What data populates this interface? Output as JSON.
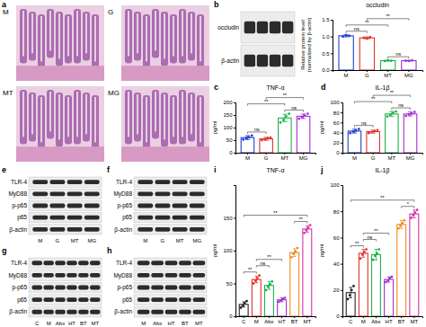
{
  "chart_data": [
    {
      "type": "bar",
      "title": "occludin",
      "y_label": [
        "Relative protein level",
        "(normalized by β-actin)"
      ],
      "categories": [
        "M",
        "G",
        "MT",
        "MG"
      ],
      "values": [
        1.02,
        0.96,
        0.28,
        0.28
      ],
      "errors": [
        0.03,
        0.03,
        0.01,
        0.01
      ],
      "points": [
        [
          1.0,
          1.04,
          1.02
        ],
        [
          0.96,
          0.94,
          0.98
        ],
        [
          0.27,
          0.29,
          0.28
        ],
        [
          0.28,
          0.27,
          0.29
        ]
      ],
      "colors": [
        "#1f3fd1",
        "#e0302a",
        "#19b34a",
        "#a22fd0"
      ],
      "ylim": [
        0,
        1.5
      ],
      "yticks": [
        {
          "value": 0,
          "label": "0.0"
        },
        {
          "value": 0.5,
          "label": "0.5"
        },
        {
          "value": 1,
          "label": "1.0"
        },
        {
          "value": 1.5,
          "label": "1.5"
        }
      ],
      "annotations": [
        {
          "pair": [
            "MT",
            "MG"
          ],
          "text": "ns"
        },
        {
          "pair": [
            "M",
            "G"
          ],
          "text": "ns"
        },
        {
          "pair": [
            "M",
            "MT"
          ],
          "text": "**"
        },
        {
          "pair": [
            "G",
            "MG"
          ],
          "text": "**"
        }
      ]
    },
    {
      "type": "bar",
      "label": "c",
      "title": "TNF-α",
      "y_label": [
        "pg/ml"
      ],
      "categories": [
        "M",
        "G",
        "MT",
        "MG"
      ],
      "values": [
        60,
        55,
        138,
        145
      ],
      "errors": [
        8,
        6,
        15,
        9
      ],
      "points": [
        [
          52,
          58,
          62,
          68
        ],
        [
          50,
          54,
          58,
          60
        ],
        [
          120,
          130,
          145,
          155
        ],
        [
          135,
          142,
          148,
          155
        ]
      ],
      "colors": [
        "#1f3fd1",
        "#e0302a",
        "#19b34a",
        "#a22fd0"
      ],
      "ylim": [
        0,
        200
      ],
      "yticks": [
        0,
        50,
        100,
        150,
        200
      ],
      "annotations": [
        {
          "pair": [
            "M",
            "G"
          ],
          "text": "ns"
        },
        {
          "pair": [
            "MT",
            "MG"
          ],
          "text": "ns"
        },
        {
          "pair": [
            "M",
            "MT"
          ],
          "text": "**"
        },
        {
          "pair": [
            "G",
            "MG"
          ],
          "text": "**"
        }
      ]
    },
    {
      "type": "bar",
      "label": "d",
      "title": "IL-1β",
      "y_label": [
        "pg/ml"
      ],
      "categories": [
        "M",
        "G",
        "MT",
        "MG"
      ],
      "values": [
        43,
        42,
        77,
        77
      ],
      "errors": [
        4,
        3,
        5,
        4
      ],
      "points": [
        [
          39,
          42,
          44,
          47
        ],
        [
          39,
          41,
          43,
          45
        ],
        [
          72,
          75,
          79,
          82
        ],
        [
          73,
          76,
          78,
          81
        ]
      ],
      "colors": [
        "#1f3fd1",
        "#e0302a",
        "#19b34a",
        "#a22fd0"
      ],
      "ylim": [
        0,
        100
      ],
      "yticks": [
        0,
        20,
        40,
        60,
        80,
        100
      ],
      "annotations": [
        {
          "pair": [
            "M",
            "G"
          ],
          "text": "ns"
        },
        {
          "pair": [
            "MT",
            "MG"
          ],
          "text": "ns"
        },
        {
          "pair": [
            "M",
            "MT"
          ],
          "text": "**"
        },
        {
          "pair": [
            "G",
            "MG"
          ],
          "text": "**"
        }
      ]
    },
    {
      "type": "bar",
      "label": "i",
      "title": "TNF-α",
      "y_label": [
        "pg/ml"
      ],
      "categories": [
        "C",
        "M",
        "Abx",
        "HT",
        "BT",
        "MT"
      ],
      "values": [
        18,
        56,
        47,
        25,
        97,
        133
      ],
      "errors": [
        4,
        5,
        6,
        3,
        6,
        5
      ],
      "points": [
        [
          13,
          16,
          20,
          23
        ],
        [
          50,
          54,
          58,
          62
        ],
        [
          40,
          45,
          49,
          53
        ],
        [
          22,
          24,
          26,
          28
        ],
        [
          90,
          95,
          99,
          104
        ],
        [
          127,
          131,
          135,
          139
        ]
      ],
      "colors": [
        "#222222",
        "#e0302a",
        "#19b34a",
        "#a22fd0",
        "#f08a1c",
        "#d62fa8"
      ],
      "ylim": [
        0,
        200
      ],
      "yticks": [
        0,
        50,
        100,
        150
      ],
      "annotations": [
        {
          "pair": [
            "C",
            "M"
          ],
          "text": "**"
        },
        {
          "pair": [
            "M",
            "Abx"
          ],
          "text": "ns"
        },
        {
          "pair": [
            "M",
            "HT"
          ],
          "text": "**"
        },
        {
          "pair": [
            "BT",
            "MT"
          ],
          "text": "**"
        },
        {
          "pair": [
            "C",
            "MT"
          ],
          "text": "**"
        }
      ]
    },
    {
      "type": "bar",
      "label": "j",
      "title": "IL-1β",
      "y_label": [
        "pg/ml"
      ],
      "categories": [
        "C",
        "M",
        "Abx",
        "HT",
        "BT",
        "MT"
      ],
      "values": [
        18,
        48,
        47,
        28,
        70,
        78
      ],
      "errors": [
        4,
        3,
        4,
        2,
        3,
        3
      ],
      "points": [
        [
          13,
          16,
          20,
          23
        ],
        [
          44,
          47,
          49,
          51
        ],
        [
          43,
          46,
          48,
          51
        ],
        [
          26,
          27,
          29,
          30
        ],
        [
          67,
          69,
          71,
          73
        ],
        [
          75,
          77,
          79,
          81
        ]
      ],
      "colors": [
        "#222222",
        "#e0302a",
        "#19b34a",
        "#a22fd0",
        "#f08a1c",
        "#d62fa8"
      ],
      "ylim": [
        0,
        100
      ],
      "yticks": [
        0,
        20,
        40,
        60,
        80,
        100
      ],
      "annotations": [
        {
          "pair": [
            "C",
            "M"
          ],
          "text": "**"
        },
        {
          "pair": [
            "M",
            "Abx"
          ],
          "text": "ns"
        },
        {
          "pair": [
            "M",
            "HT"
          ],
          "text": "**"
        },
        {
          "pair": [
            "BT",
            "MT"
          ],
          "text": "*"
        },
        {
          "pair": [
            "C",
            "MT"
          ],
          "text": "**"
        }
      ]
    }
  ],
  "histology": {
    "label": "a",
    "images": [
      "M",
      "G",
      "MT",
      "MG"
    ]
  },
  "blots": [
    {
      "label": "b",
      "rows": [
        "occludin",
        "β-actin"
      ]
    },
    {
      "label": "e",
      "rows": [
        "TLR-4",
        "MyD88",
        "p-p65",
        "p65",
        "β-actin"
      ],
      "lanes": [
        "M",
        "G",
        "MT",
        "MG"
      ]
    },
    {
      "label": "f",
      "rows": [
        "TLR-4",
        "MyD88",
        "p-p65",
        "p65",
        "β-actin"
      ],
      "lanes": [
        "M",
        "G",
        "MT",
        "MG"
      ]
    },
    {
      "label": "g",
      "rows": [
        "TLR-4",
        "MyD88",
        "p-p65",
        "p65",
        "β-actin"
      ],
      "lanes": [
        "C",
        "M",
        "Abx",
        "HT",
        "BT",
        "MT"
      ]
    },
    {
      "label": "h",
      "rows": [
        "TLR-4",
        "MyD88",
        "p-p65",
        "p65",
        "β-actin"
      ],
      "lanes": [
        "M",
        "Abx",
        "HT",
        "BT",
        "MT"
      ]
    }
  ]
}
